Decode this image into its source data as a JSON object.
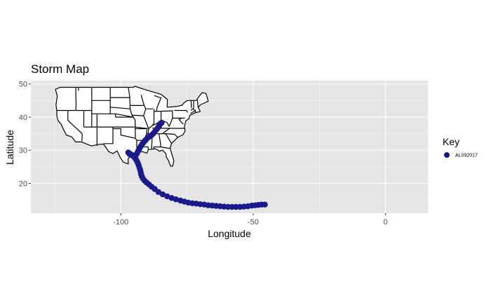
{
  "chart_data": {
    "type": "scatter",
    "title": "Storm Map",
    "xlabel": "Longitude",
    "ylabel": "Latitude",
    "xlim": [
      -134,
      16
    ],
    "ylim": [
      11,
      51
    ],
    "x_ticks": [
      -100,
      -50,
      0
    ],
    "x_tick_labels": [
      "-100",
      "-50",
      "0"
    ],
    "y_ticks": [
      20,
      30,
      40,
      50
    ],
    "y_tick_labels": [
      "20",
      "30",
      "40",
      "50"
    ],
    "grid": true,
    "panel_color": "#e5e5e5",
    "basemap": "United States state boundaries",
    "legend": {
      "title": "Key",
      "position": "right",
      "entries": [
        "AL092017"
      ]
    },
    "series": [
      {
        "name": "AL092017",
        "color": "#1a1a8c",
        "points": [
          [
            -45.6,
            13.6
          ],
          [
            -46.8,
            13.6
          ],
          [
            -48.0,
            13.5
          ],
          [
            -49.2,
            13.4
          ],
          [
            -50.5,
            13.3
          ],
          [
            -52.0,
            13.1
          ],
          [
            -53.5,
            13.0
          ],
          [
            -55.0,
            12.9
          ],
          [
            -56.5,
            12.9
          ],
          [
            -58.0,
            12.9
          ],
          [
            -59.5,
            12.9
          ],
          [
            -61.0,
            13.0
          ],
          [
            -62.5,
            13.1
          ],
          [
            -64.0,
            13.2
          ],
          [
            -65.5,
            13.3
          ],
          [
            -67.0,
            13.4
          ],
          [
            -68.5,
            13.6
          ],
          [
            -70.0,
            13.7
          ],
          [
            -71.5,
            13.9
          ],
          [
            -73.0,
            14.0
          ],
          [
            -74.5,
            14.2
          ],
          [
            -76.0,
            14.5
          ],
          [
            -77.5,
            14.8
          ],
          [
            -79.2,
            15.2
          ],
          [
            -80.8,
            15.6
          ],
          [
            -82.5,
            16.1
          ],
          [
            -84.2,
            16.7
          ],
          [
            -85.8,
            17.4
          ],
          [
            -87.2,
            18.3
          ],
          [
            -88.4,
            19.0
          ],
          [
            -89.4,
            19.7
          ],
          [
            -90.3,
            20.3
          ],
          [
            -91.0,
            20.8
          ],
          [
            -91.6,
            21.4
          ],
          [
            -92.0,
            22.0
          ],
          [
            -92.3,
            22.7
          ],
          [
            -92.5,
            23.4
          ],
          [
            -92.7,
            24.1
          ],
          [
            -93.0,
            24.8
          ],
          [
            -93.3,
            25.5
          ],
          [
            -93.6,
            26.2
          ],
          [
            -94.0,
            26.8
          ],
          [
            -94.4,
            27.4
          ],
          [
            -94.9,
            27.9
          ],
          [
            -95.5,
            28.3
          ],
          [
            -96.2,
            28.6
          ],
          [
            -96.8,
            28.9
          ],
          [
            -97.2,
            29.3
          ],
          [
            -96.6,
            29.0
          ],
          [
            -95.9,
            28.6
          ],
          [
            -95.2,
            28.3
          ],
          [
            -94.6,
            28.4
          ],
          [
            -94.1,
            28.8
          ],
          [
            -93.7,
            29.4
          ],
          [
            -93.3,
            30.0
          ],
          [
            -92.9,
            30.6
          ],
          [
            -92.5,
            31.2
          ],
          [
            -92.0,
            31.8
          ],
          [
            -91.5,
            32.3
          ],
          [
            -91.0,
            32.8
          ],
          [
            -90.5,
            33.2
          ],
          [
            -89.9,
            33.7
          ],
          [
            -89.2,
            34.1
          ],
          [
            -88.5,
            34.5
          ],
          [
            -87.8,
            35.0
          ],
          [
            -87.2,
            35.6
          ],
          [
            -86.6,
            36.2
          ],
          [
            -86.0,
            36.8
          ],
          [
            -85.5,
            37.4
          ],
          [
            -85.0,
            38.0
          ],
          [
            -84.6,
            38.3
          ]
        ]
      }
    ]
  }
}
